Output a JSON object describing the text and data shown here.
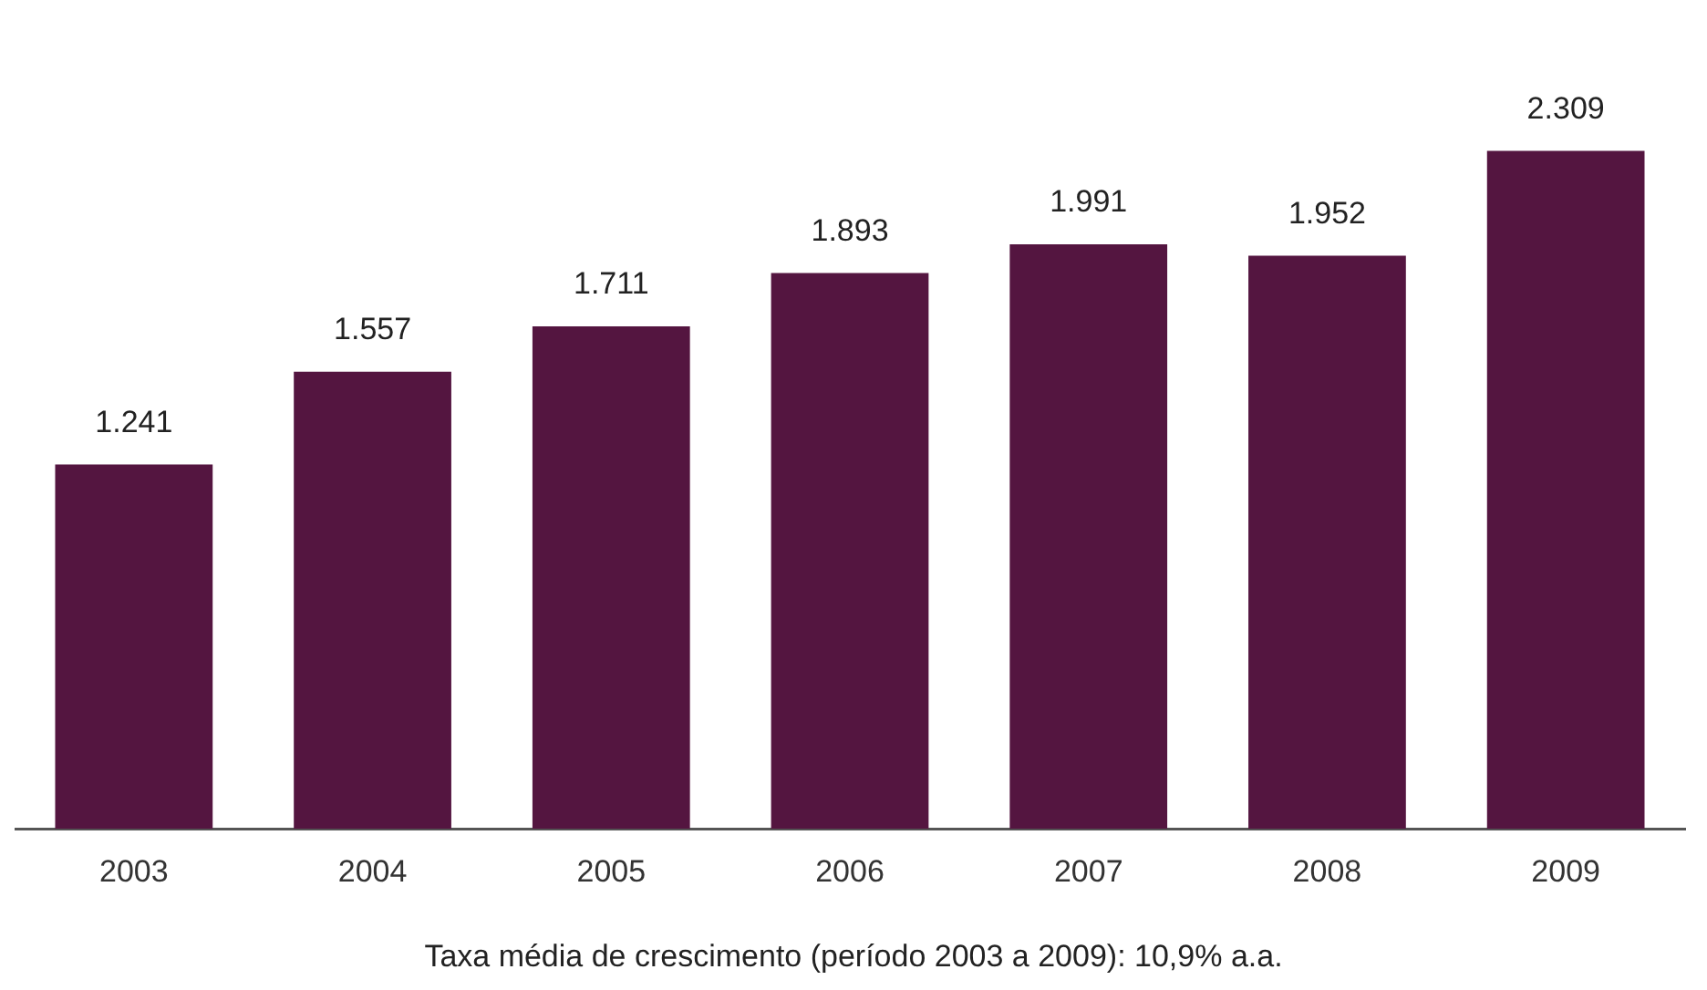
{
  "chart_data": {
    "type": "bar",
    "categories": [
      "2003",
      "2004",
      "2005",
      "2006",
      "2007",
      "2008",
      "2009"
    ],
    "values": [
      1241,
      1557,
      1711,
      1893,
      1991,
      1952,
      2309
    ],
    "value_labels": [
      "1.241",
      "1.557",
      "1.711",
      "1.893",
      "1.991",
      "1.952",
      "2.309"
    ],
    "color": "#541540",
    "grid": false,
    "legend": false,
    "annotations": [
      "Taxa média de crescimento (período 2003 a 2009): 10,9% a.a."
    ]
  }
}
